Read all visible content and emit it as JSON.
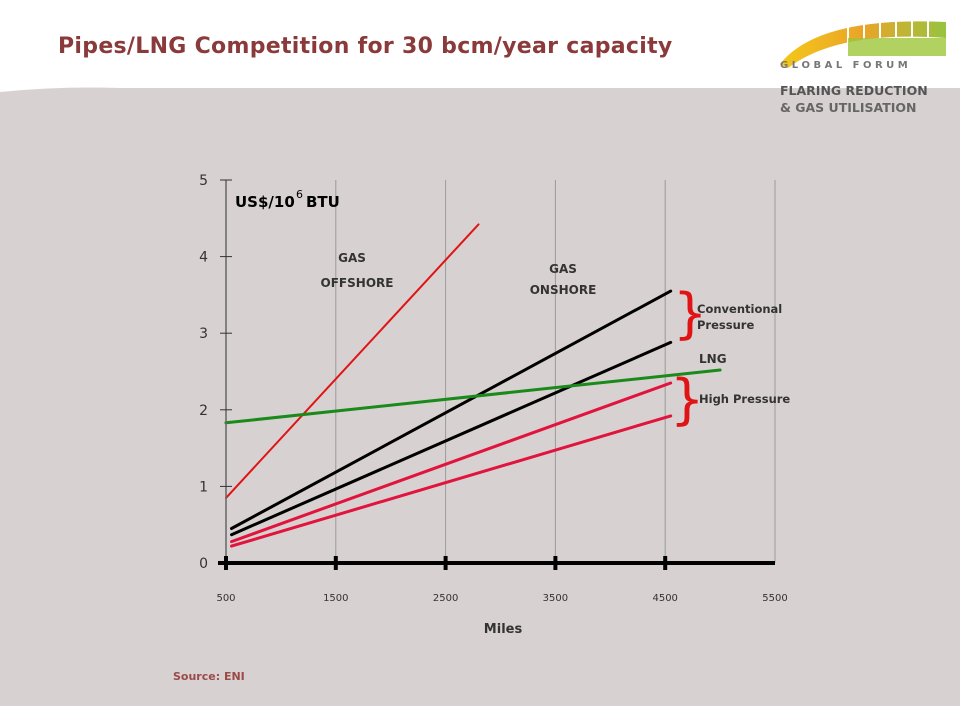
{
  "slide": {
    "title": "Pipes/LNG Competition for 30 bcm/year capacity",
    "source": "Source: ENI",
    "logo": {
      "top": "G L O B A L   F O R U M",
      "line1": "FLARING REDUCTION",
      "line2": "& GAS UTILISATION"
    }
  },
  "colors": {
    "title": "#8a3a3a",
    "panel": "#d8d1d1",
    "offshore": "#e01414",
    "onshore": "#000000",
    "lng": "#1a8a1a",
    "high_pressure": "#e0143c"
  },
  "chart_data": {
    "type": "line",
    "xlabel": "Miles",
    "ylabel": "US$/10",
    "ylabel_sup": "6",
    "ylabel_suffix": "BTU",
    "xlim": [
      500,
      5500
    ],
    "ylim": [
      0,
      5
    ],
    "x_ticks": [
      500,
      1500,
      2500,
      3500,
      4500,
      5500
    ],
    "y_ticks": [
      0,
      1,
      2,
      3,
      4,
      5
    ],
    "grid": "vertical",
    "series": [
      {
        "key": "offshore",
        "points": [
          [
            500,
            0.85
          ],
          [
            2800,
            4.42
          ]
        ]
      },
      {
        "key": "onshore_conv_high",
        "points": [
          [
            550,
            0.45
          ],
          [
            4550,
            3.55
          ]
        ]
      },
      {
        "key": "onshore_conv_low",
        "points": [
          [
            550,
            0.37
          ],
          [
            4550,
            2.88
          ]
        ]
      },
      {
        "key": "onshore_hp_high",
        "points": [
          [
            550,
            0.28
          ],
          [
            4550,
            2.35
          ]
        ]
      },
      {
        "key": "onshore_hp_low",
        "points": [
          [
            550,
            0.22
          ],
          [
            4550,
            1.92
          ]
        ]
      },
      {
        "key": "lng",
        "points": [
          [
            500,
            1.83
          ],
          [
            5000,
            2.52
          ]
        ]
      }
    ],
    "annotations": {
      "gas_offshore_1": "GAS",
      "gas_offshore_2": "OFFSHORE",
      "gas_onshore_1": "GAS",
      "gas_onshore_2": "ONSHORE",
      "conventional_1": "Conventional",
      "conventional_2": "Pressure",
      "lng": "LNG",
      "high_pressure": "High Pressure"
    }
  }
}
